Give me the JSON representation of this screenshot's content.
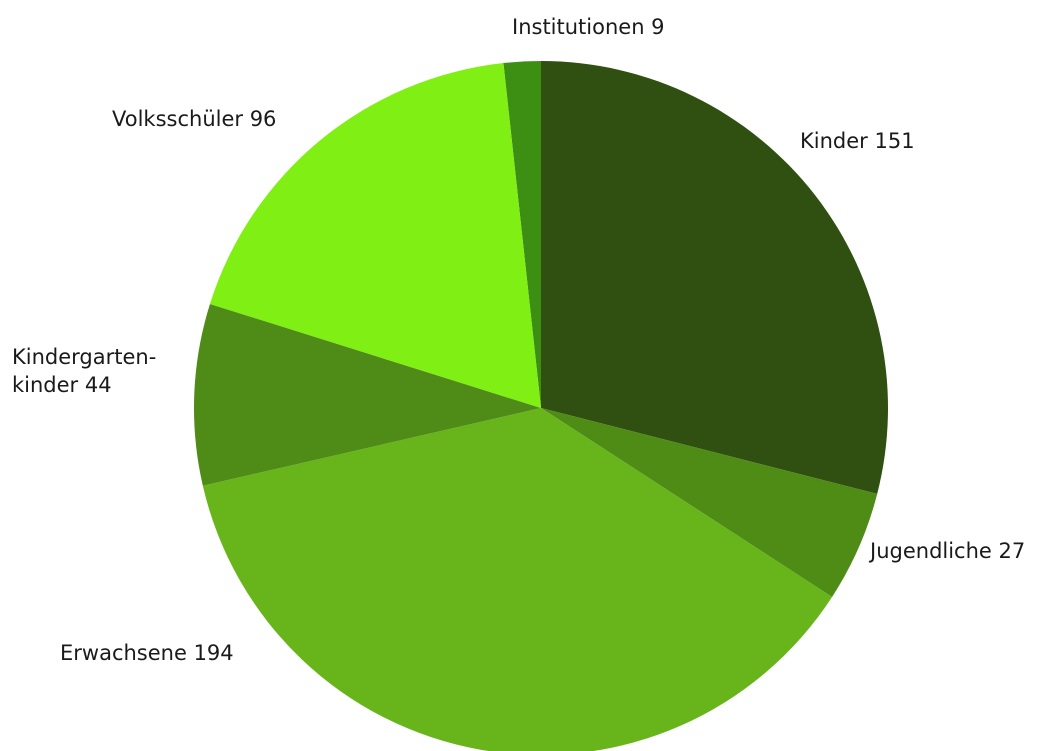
{
  "chart_data": {
    "type": "pie",
    "slices": [
      {
        "category": "Institutionen",
        "value": 9,
        "label": [
          "Institutionen 9"
        ],
        "color": "#3d8f14"
      },
      {
        "category": "Kinder",
        "value": 151,
        "label": [
          "Kinder 151"
        ],
        "color": "#2f5010"
      },
      {
        "category": "Jugendliche",
        "value": 27,
        "label": [
          "Jugendliche 27"
        ],
        "color": "#4e8c16"
      },
      {
        "category": "Erwachsene",
        "value": 194,
        "label": [
          "Erwachsene 194"
        ],
        "color": "#68b51b"
      },
      {
        "category": "Kindergartenkinder",
        "value": 44,
        "label": [
          "Kindergarten-",
          "kinder 44"
        ],
        "color": "#4f8c17"
      },
      {
        "category": "Volksschüler",
        "value": 96,
        "label": [
          "Volksschüler 96"
        ],
        "color": "#80ef13"
      }
    ]
  }
}
